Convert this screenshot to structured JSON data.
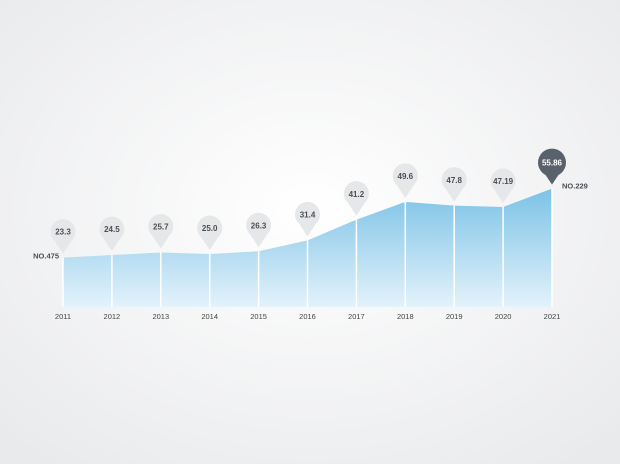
{
  "chart_data": {
    "type": "area",
    "categories": [
      "2011",
      "2012",
      "2013",
      "2014",
      "2015",
      "2016",
      "2017",
      "2018",
      "2019",
      "2020",
      "2021"
    ],
    "values": [
      23.3,
      24.5,
      25.7,
      25.0,
      26.3,
      31.4,
      41.2,
      49.6,
      47.8,
      47.19,
      55.86
    ],
    "value_labels": [
      "23.3",
      "24.5",
      "25.7",
      "25.0",
      "26.3",
      "31.4",
      "41.2",
      "49.6",
      "47.8",
      "47.19",
      "55.86"
    ],
    "annotations": [
      "NO.475",
      "NO.229"
    ],
    "color": "#7cc2e6",
    "pin_color": "#e5e7e9",
    "highlight_color": "#59626c"
  }
}
